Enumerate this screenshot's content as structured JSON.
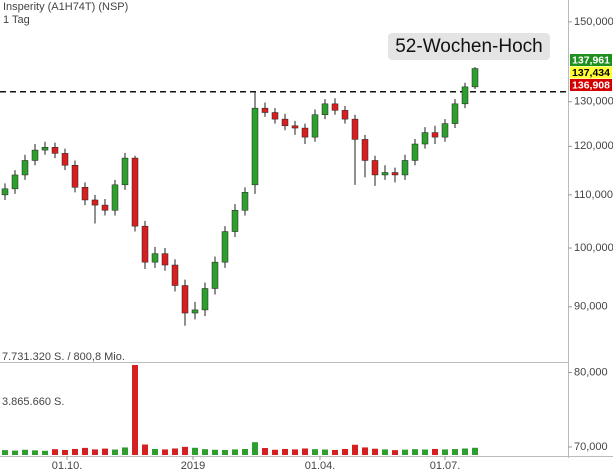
{
  "chart_data": {
    "type": "candlestick",
    "title": "Insperity (A1H74T) (NSP)",
    "subtitle": "1 Tag",
    "log_scale": true,
    "ylim": [
      69.0,
      156.0
    ],
    "yticks": [
      {
        "value": 150,
        "label": "150,000"
      },
      {
        "value": 130,
        "label": "130,000"
      },
      {
        "value": 120,
        "label": "120,000"
      },
      {
        "value": 110,
        "label": "110,000"
      },
      {
        "value": 100,
        "label": "100,000"
      },
      {
        "value": 90,
        "label": "90,000"
      },
      {
        "value": 80,
        "label": "80,000"
      },
      {
        "value": 70,
        "label": "70,000"
      }
    ],
    "xlim": [
      -0.5,
      56.3
    ],
    "xticks": [
      {
        "value": 6.2,
        "label": "01.10."
      },
      {
        "value": 18.8,
        "label": "2019"
      },
      {
        "value": 31.5,
        "label": "01.04."
      },
      {
        "value": 44,
        "label": "01.07."
      }
    ],
    "up_color": "#2e9e2e",
    "down_color": "#d42020",
    "open": [
      110.0,
      111.2,
      114.0,
      117.0,
      119.2,
      119.8,
      118.5,
      116.0,
      111.5,
      109.0,
      108.0,
      107.0,
      112.0,
      117.5,
      104.0,
      97.5,
      99.0,
      97.0,
      93.5,
      89.0,
      89.5,
      93.0,
      97.5,
      103.0,
      107.0,
      112.0,
      128.5,
      127.5,
      126.0,
      124.5,
      124.0,
      122.0,
      127.0,
      129.5,
      128.0,
      126.0,
      121.5,
      117.0,
      114.0,
      114.5,
      114.0,
      117.0,
      120.5,
      123.0,
      122.0,
      125.0,
      129.5,
      133.5
    ],
    "high": [
      112.3,
      115.0,
      118.2,
      120.5,
      121.0,
      120.8,
      119.5,
      117.0,
      112.5,
      110.0,
      109.2,
      113.0,
      118.6,
      118.0,
      105.0,
      100.2,
      100.0,
      98.0,
      94.5,
      90.8,
      94.0,
      98.5,
      104.0,
      108.2,
      111.5,
      132.4,
      129.8,
      128.5,
      127.2,
      125.6,
      125.0,
      128.2,
      130.6,
      130.8,
      129.0,
      127.0,
      122.5,
      118.0,
      116.0,
      115.5,
      118.2,
      121.6,
      124.2,
      124.5,
      126.0,
      130.6,
      134.5,
      138.3
    ],
    "low": [
      109.0,
      110.2,
      113.0,
      116.0,
      118.2,
      117.5,
      115.0,
      110.5,
      108.0,
      104.5,
      106.0,
      106.0,
      111.0,
      103.0,
      96.3,
      96.5,
      96.0,
      92.5,
      87.0,
      88.0,
      88.5,
      92.0,
      96.5,
      102.0,
      106.0,
      110.2,
      126.5,
      125.0,
      123.5,
      122.5,
      120.5,
      121.0,
      126.0,
      127.0,
      125.0,
      112.0,
      113.5,
      111.8,
      113.0,
      112.5,
      113.0,
      116.0,
      119.5,
      120.5,
      121.0,
      124.0,
      128.5,
      133.0
    ],
    "close": [
      111.2,
      114.0,
      117.0,
      119.2,
      119.8,
      118.5,
      116.0,
      111.5,
      109.0,
      108.0,
      107.0,
      112.0,
      117.5,
      104.0,
      97.5,
      99.0,
      97.0,
      93.5,
      89.0,
      89.5,
      93.0,
      97.5,
      103.0,
      107.0,
      110.5,
      128.5,
      127.5,
      126.0,
      124.5,
      124.0,
      122.0,
      127.0,
      129.5,
      128.0,
      126.0,
      121.5,
      117.0,
      114.0,
      114.5,
      114.0,
      117.0,
      120.5,
      123.0,
      122.0,
      125.0,
      129.5,
      133.5,
      137.961
    ],
    "volume": [
      420000,
      380000,
      450000,
      400000,
      360000,
      500000,
      430000,
      520000,
      610000,
      480000,
      550000,
      470000,
      650000,
      7731320,
      900000,
      520000,
      480000,
      560000,
      700000,
      620000,
      500000,
      450000,
      430000,
      480000,
      520000,
      1100000,
      600000,
      450000,
      520000,
      480000,
      560000,
      500000,
      470000,
      430000,
      520000,
      880000,
      650000,
      540000,
      480000,
      420000,
      460000,
      500000,
      470000,
      520000,
      480000,
      510000,
      560000,
      620000
    ],
    "volume_lim": [
      0,
      7731320
    ],
    "volume_ticks": [
      {
        "value": 7731320,
        "label": "7.731.320 S. / 800,8 Mio."
      },
      {
        "value": 3865660,
        "label": "3.865.660 S."
      }
    ],
    "reference_line": {
      "value": 132.34,
      "label": "52-Wochen-Hoch"
    },
    "price_labels": [
      {
        "value": 137.961,
        "label": "137,961",
        "color": "#1f8f1f"
      },
      {
        "value": 137.434,
        "label": "137,434",
        "color": "#ffff33"
      },
      {
        "value": 136.908,
        "label": "136,908",
        "color": "#d40000"
      }
    ]
  }
}
